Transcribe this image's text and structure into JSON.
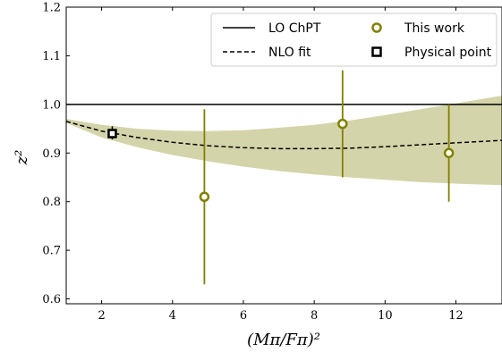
{
  "chart_data": {
    "type": "scatter",
    "xlabel": "(Mπ/Fπ)²",
    "ylabel": "z²",
    "xlim": [
      1.0,
      13.3
    ],
    "ylim": [
      0.59,
      1.2
    ],
    "x_ticks": [
      2,
      4,
      6,
      8,
      10,
      12
    ],
    "y_ticks": [
      0.6,
      0.7,
      0.8,
      0.9,
      1.0,
      1.1,
      1.2
    ],
    "grid": false,
    "legend_position": "top-right",
    "colors": {
      "points": "#808000",
      "band": "#d4d4aa",
      "lines": "#000000"
    },
    "series": [
      {
        "name": "LO ChPT",
        "style": "solid-line",
        "x": [
          1.0,
          13.3
        ],
        "y": [
          1.0,
          1.0
        ]
      },
      {
        "name": "NLO fit",
        "style": "dashed-line",
        "x": [
          1.0,
          2.0,
          3.0,
          4.0,
          5.0,
          6.0,
          7.0,
          8.0,
          9.0,
          10.0,
          11.0,
          12.0,
          13.3
        ],
        "y": [
          0.965,
          0.945,
          0.932,
          0.922,
          0.915,
          0.911,
          0.909,
          0.909,
          0.91,
          0.913,
          0.917,
          0.921,
          0.926
        ],
        "band_upper": [
          0.97,
          0.958,
          0.95,
          0.946,
          0.945,
          0.947,
          0.952,
          0.958,
          0.967,
          0.978,
          0.99,
          1.002,
          1.018
        ],
        "band_lower": [
          0.962,
          0.932,
          0.912,
          0.896,
          0.883,
          0.872,
          0.863,
          0.856,
          0.85,
          0.845,
          0.84,
          0.837,
          0.834
        ]
      },
      {
        "name": "This work",
        "style": "circle-points",
        "points": [
          {
            "x": 4.9,
            "y": 0.81,
            "yerr_low": 0.63,
            "yerr_high": 0.99
          },
          {
            "x": 8.8,
            "y": 0.96,
            "yerr_low": 0.85,
            "yerr_high": 1.07
          },
          {
            "x": 11.8,
            "y": 0.9,
            "yerr_low": 0.8,
            "yerr_high": 1.0
          }
        ]
      },
      {
        "name": "Physical point",
        "style": "square-point",
        "points": [
          {
            "x": 2.3,
            "y": 0.94,
            "yerr_low": 0.928,
            "yerr_high": 0.955
          }
        ]
      }
    ]
  }
}
